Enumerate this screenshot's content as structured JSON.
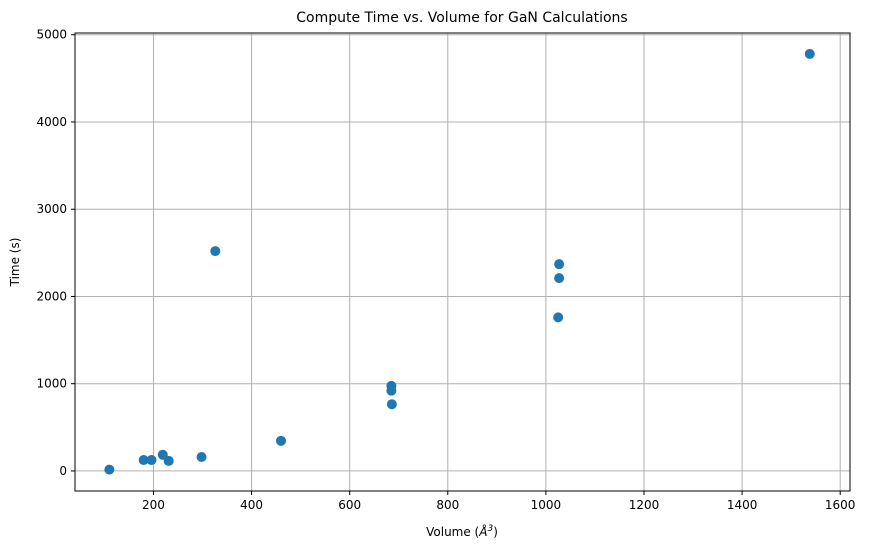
{
  "chart_data": {
    "type": "scatter",
    "title": "Compute Time vs. Volume for GaN Calculations",
    "xlabel": "Volume (",
    "xlabel_unit": "Å",
    "xlabel_exp": "3",
    "xlabel_close": ")",
    "ylabel": "Time (s)",
    "xlim": [
      40,
      1620
    ],
    "ylim": [
      -230,
      5020
    ],
    "xticks": [
      200,
      400,
      600,
      800,
      1000,
      1200,
      1400,
      1600
    ],
    "yticks": [
      0,
      1000,
      2000,
      3000,
      4000,
      5000
    ],
    "grid": true,
    "marker_color": "#1f77b4",
    "series": [
      {
        "name": "GaN",
        "points": [
          {
            "x": 110,
            "y": 15
          },
          {
            "x": 180,
            "y": 125
          },
          {
            "x": 196,
            "y": 125
          },
          {
            "x": 219,
            "y": 185
          },
          {
            "x": 231,
            "y": 115
          },
          {
            "x": 298,
            "y": 160
          },
          {
            "x": 326,
            "y": 2520
          },
          {
            "x": 460,
            "y": 345
          },
          {
            "x": 685,
            "y": 975
          },
          {
            "x": 685,
            "y": 920
          },
          {
            "x": 686,
            "y": 765
          },
          {
            "x": 1025,
            "y": 1760
          },
          {
            "x": 1027,
            "y": 2210
          },
          {
            "x": 1027,
            "y": 2370
          },
          {
            "x": 1538,
            "y": 4780
          }
        ]
      }
    ]
  }
}
